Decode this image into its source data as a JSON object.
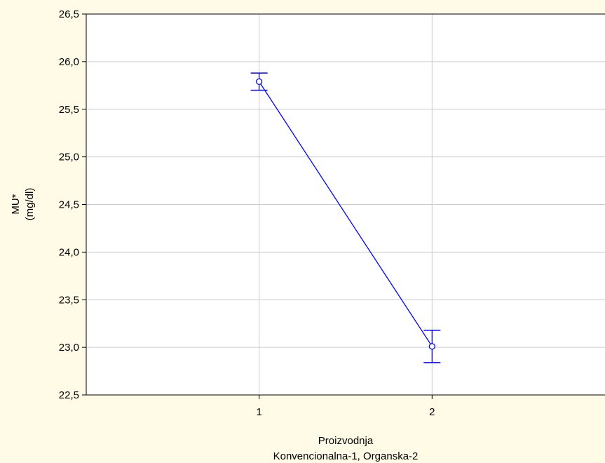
{
  "chart_data": {
    "type": "line",
    "title": "",
    "xlabel_line1": "Proizvodnja",
    "xlabel_line2": "Konvencionalna-1, Organska-2",
    "ylabel_line1": "MU*",
    "ylabel_line2": "(mg/dl)",
    "x_ticks": [
      "1",
      "2"
    ],
    "y_ticks": [
      "22,5",
      "23,0",
      "23,5",
      "24,0",
      "24,5",
      "25,0",
      "25,5",
      "26,0",
      "26,5"
    ],
    "y_tick_values": [
      22.5,
      23.0,
      23.5,
      24.0,
      24.5,
      25.0,
      25.5,
      26.0,
      26.5
    ],
    "ylim": [
      22.5,
      26.5
    ],
    "xlim": [
      0,
      3
    ],
    "grid": true,
    "line_color": "#0000ff",
    "series": [
      {
        "x": [
          1,
          2
        ],
        "y": [
          25.79,
          23.01
        ],
        "err_lower": [
          25.7,
          22.84
        ],
        "err_upper": [
          25.88,
          23.18
        ]
      }
    ]
  }
}
